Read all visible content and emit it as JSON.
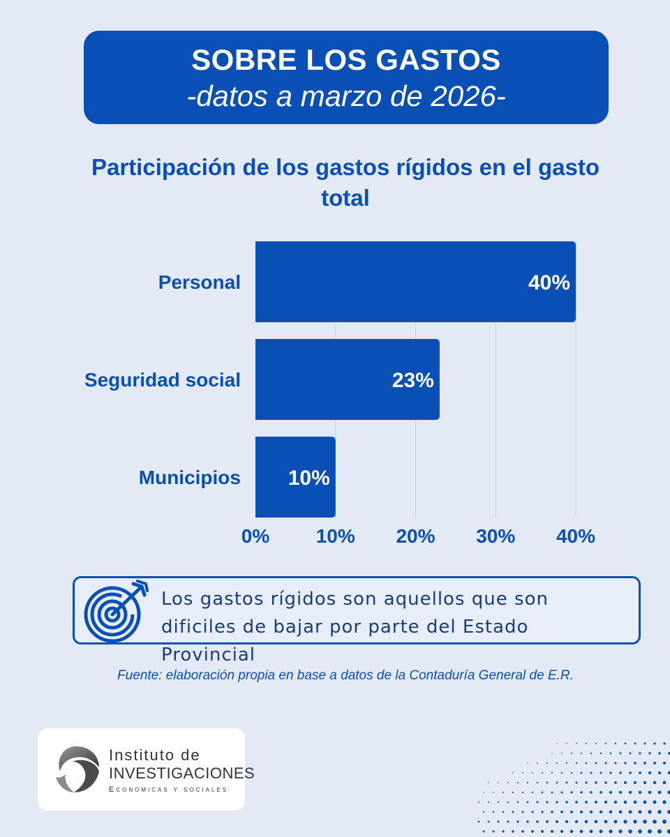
{
  "header": {
    "title": "SOBRE LOS GASTOS",
    "subtitle": "-datos a marzo de 2026-"
  },
  "colors": {
    "background": "#e3eaf6",
    "accent": "#0a4fb5",
    "bar": "#0a4fb5",
    "bar_label": "#ffffff"
  },
  "chart_data": {
    "type": "bar",
    "orientation": "horizontal",
    "title": "Participación de los gastos rígidos en el gasto total",
    "categories": [
      "Personal",
      "Seguridad social",
      "Municipios"
    ],
    "values": [
      40,
      23,
      10
    ],
    "value_labels": [
      "40%",
      "23%",
      "10%"
    ],
    "xlim": [
      0,
      40
    ],
    "x_ticks": [
      0,
      10,
      20,
      30,
      40
    ],
    "x_tick_labels": [
      "0%",
      "10%",
      "20%",
      "30%",
      "40%"
    ],
    "xlabel": "",
    "ylabel": "",
    "grid": "vertical"
  },
  "note": {
    "icon": "target-icon",
    "text": "Los gastos rígidos son aquellos que son dificiles de bajar por parte del Estado Provincial"
  },
  "source": "Fuente: elaboración propia en base a datos de la Contaduría General de E.R.",
  "logo": {
    "line1": "Instituto de",
    "line2": "INVESTIGACIONES",
    "line3": "Economicas y sociales"
  }
}
